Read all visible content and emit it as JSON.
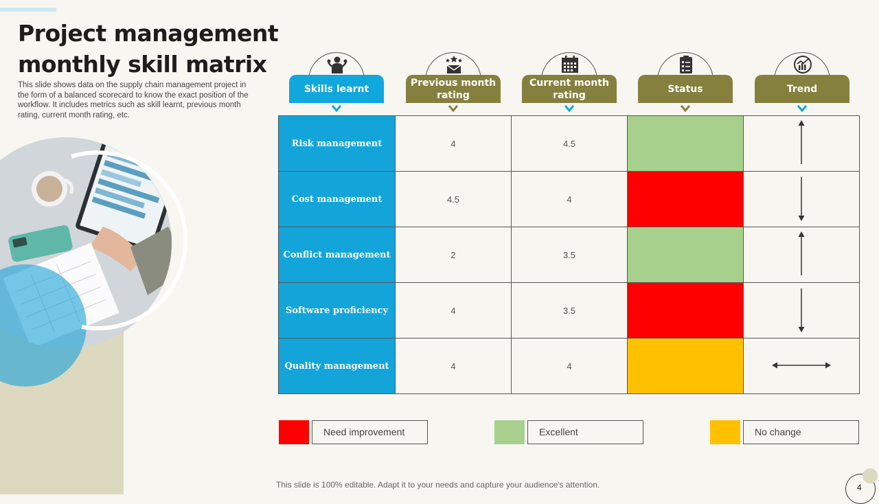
{
  "slide": {
    "title": "Project management monthly skill matrix",
    "description": "This slide shows data on the supply chain management project in the form of a balanced scorecard to know the exact position of the workflow. It includes metrics such as skill learnt, previous month rating, current month rating, etc.",
    "footer": "This slide is 100% editable. Adapt it to your needs and capture your audience's attention.",
    "page_number": "4"
  },
  "colors": {
    "blue": "#10a7dc",
    "olive": "#86803f",
    "red": "#ff0000",
    "green": "#a8d08d",
    "yellow": "#ffc000",
    "beige": "#ddd8c0"
  },
  "headers": [
    {
      "label": "Skills learnt",
      "icon": "person-skills-icon"
    },
    {
      "label": "Previous month rating",
      "icon": "rating-stars-icon"
    },
    {
      "label": "Current month rating",
      "icon": "calendar-icon"
    },
    {
      "label": "Status",
      "icon": "clipboard-icon"
    },
    {
      "label": "Trend",
      "icon": "trend-chart-icon"
    }
  ],
  "rows": [
    {
      "skill": "Risk management",
      "previous": "4",
      "current": "4.5",
      "status": "Excellent",
      "trend": "up"
    },
    {
      "skill": "Cost management",
      "previous": "4.5",
      "current": "4",
      "status": "Need improvement",
      "trend": "down"
    },
    {
      "skill": "Conflict management",
      "previous": "2",
      "current": "3.5",
      "status": "Excellent",
      "trend": "up"
    },
    {
      "skill": "Software proficiency",
      "previous": "4",
      "current": "3.5",
      "status": "Need improvement",
      "trend": "down"
    },
    {
      "skill": "Quality management",
      "previous": "4",
      "current": "4",
      "status": "No change",
      "trend": "flat"
    }
  ],
  "legend": [
    {
      "label": "Need improvement",
      "color": "#ff0000"
    },
    {
      "label": "Excellent",
      "color": "#a8d08d"
    },
    {
      "label": "No change",
      "color": "#ffc000"
    }
  ]
}
